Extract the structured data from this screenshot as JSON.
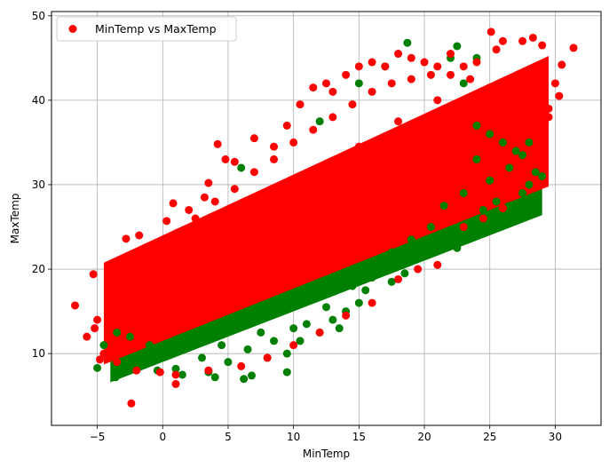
{
  "chart_data": {
    "type": "scatter",
    "title": "",
    "xlabel": "MinTemp",
    "ylabel": "MaxTemp",
    "xlim": [
      -8.5,
      33.5
    ],
    "ylim": [
      1.5,
      50.5
    ],
    "xticks": [
      -5,
      0,
      5,
      10,
      15,
      20,
      25,
      30
    ],
    "yticks": [
      10,
      20,
      30,
      40,
      50
    ],
    "grid": true,
    "legend_position": "top-left",
    "series": [
      {
        "name": "",
        "color": "#008000",
        "points": [
          [
            -5,
            8.3
          ],
          [
            -3.6,
            7.2
          ],
          [
            -2.5,
            12.0
          ],
          [
            -1.5,
            9.5
          ],
          [
            -0.4,
            8.0
          ],
          [
            1.0,
            8.2
          ],
          [
            1.5,
            7.5
          ],
          [
            3.5,
            7.8
          ],
          [
            4.0,
            7.2
          ],
          [
            5.0,
            9.0
          ],
          [
            6.2,
            7.0
          ],
          [
            6.8,
            7.4
          ],
          [
            8.0,
            9.5
          ],
          [
            9.5,
            7.8
          ],
          [
            9.5,
            10.0
          ],
          [
            10.5,
            11.5
          ],
          [
            12.0,
            12.5
          ],
          [
            13.0,
            14.0
          ],
          [
            14.0,
            15.0
          ],
          [
            15.0,
            16.0
          ],
          [
            15.5,
            17.5
          ],
          [
            16.5,
            19.5
          ],
          [
            17.5,
            18.5
          ],
          [
            18.5,
            19.5
          ],
          [
            19.0,
            21.0
          ],
          [
            20.0,
            22.0
          ],
          [
            21.0,
            23.5
          ],
          [
            22.5,
            22.5
          ],
          [
            23.5,
            25.5
          ],
          [
            24.5,
            27.0
          ],
          [
            25.5,
            28.0
          ],
          [
            26.5,
            27.5
          ],
          [
            27.5,
            29.0
          ],
          [
            28.0,
            30.0
          ],
          [
            28.5,
            31.5
          ],
          [
            29.0,
            31.0
          ],
          [
            27.5,
            33.5
          ],
          [
            26.0,
            35.0
          ],
          [
            25.0,
            36.0
          ],
          [
            24.0,
            37.0
          ],
          [
            23.0,
            42.0
          ],
          [
            22.5,
            46.4
          ],
          [
            24.0,
            45.0
          ],
          [
            18.7,
            46.8
          ],
          [
            17.0,
            44.0
          ],
          [
            6.0,
            32.0
          ],
          [
            12.0,
            37.5
          ],
          [
            15.0,
            42.0
          ],
          [
            22.0,
            45.0
          ],
          [
            4.5,
            11.0
          ],
          [
            2.0,
            12.0
          ],
          [
            7.5,
            12.5
          ],
          [
            11.0,
            13.5
          ],
          [
            13.5,
            13.0
          ],
          [
            16.0,
            19.0
          ],
          [
            20.5,
            25.0
          ],
          [
            21.5,
            27.5
          ],
          [
            23.0,
            29.0
          ],
          [
            24.0,
            33.0
          ],
          [
            26.5,
            32.0
          ],
          [
            27.0,
            34.0
          ],
          [
            28.0,
            35.0
          ],
          [
            25.0,
            30.5
          ],
          [
            19.0,
            23.5
          ],
          [
            17.5,
            22.0
          ],
          [
            14.5,
            18.0
          ],
          [
            12.5,
            15.5
          ],
          [
            10.0,
            13.0
          ],
          [
            8.5,
            11.5
          ],
          [
            6.5,
            10.5
          ],
          [
            3.0,
            9.5
          ],
          [
            0.5,
            10.0
          ],
          [
            -1.0,
            11.0
          ],
          [
            -3.5,
            12.5
          ],
          [
            -4.5,
            11.0
          ]
        ]
      },
      {
        "name": "MinTemp vs MaxTemp",
        "color": "#ff0000",
        "points": [
          [
            -6.7,
            15.7
          ],
          [
            -5.8,
            12.0
          ],
          [
            -5.3,
            19.4
          ],
          [
            -5.2,
            13.0
          ],
          [
            -5.0,
            14.0
          ],
          [
            -4.8,
            9.3
          ],
          [
            -4.0,
            16.5
          ],
          [
            -2.4,
            4.1
          ],
          [
            -2.8,
            23.6
          ],
          [
            -1.8,
            24.0
          ],
          [
            -1.2,
            21.5
          ],
          [
            0.3,
            25.7
          ],
          [
            1.0,
            6.4
          ],
          [
            0.8,
            27.8
          ],
          [
            2.0,
            27.0
          ],
          [
            3.2,
            28.5
          ],
          [
            3.5,
            30.2
          ],
          [
            4.2,
            34.8
          ],
          [
            4.8,
            33.0
          ],
          [
            5.5,
            32.7
          ],
          [
            7.0,
            35.5
          ],
          [
            8.5,
            34.5
          ],
          [
            9.5,
            37.0
          ],
          [
            10.5,
            39.5
          ],
          [
            11.5,
            41.5
          ],
          [
            12.5,
            42.0
          ],
          [
            13.0,
            41.0
          ],
          [
            14.0,
            43.0
          ],
          [
            15.0,
            44.0
          ],
          [
            16.0,
            44.5
          ],
          [
            17.0,
            44.0
          ],
          [
            18.0,
            45.5
          ],
          [
            19.0,
            45.0
          ],
          [
            20.0,
            44.5
          ],
          [
            21.0,
            44.0
          ],
          [
            22.0,
            45.5
          ],
          [
            23.0,
            44.0
          ],
          [
            24.0,
            44.5
          ],
          [
            25.1,
            48.1
          ],
          [
            25.5,
            46.0
          ],
          [
            26.0,
            47.0
          ],
          [
            27.5,
            47.0
          ],
          [
            28.3,
            47.4
          ],
          [
            29.0,
            46.5
          ],
          [
            30.5,
            44.2
          ],
          [
            31.4,
            46.2
          ],
          [
            30.0,
            42.0
          ],
          [
            30.3,
            40.5
          ],
          [
            29.5,
            38.0
          ],
          [
            29.0,
            35.0
          ],
          [
            28.5,
            33.5
          ],
          [
            27.5,
            31.0
          ],
          [
            26.0,
            27.2
          ],
          [
            24.5,
            26.0
          ],
          [
            23.0,
            25.0
          ],
          [
            21.0,
            20.5
          ],
          [
            19.5,
            20.0
          ],
          [
            18.0,
            18.8
          ],
          [
            16.0,
            16.0
          ],
          [
            14.0,
            14.5
          ],
          [
            12.0,
            12.5
          ],
          [
            10.0,
            11.0
          ],
          [
            8.0,
            9.5
          ],
          [
            6.0,
            8.5
          ],
          [
            3.5,
            8.0
          ],
          [
            1.0,
            7.5
          ],
          [
            -0.2,
            7.8
          ],
          [
            -2.0,
            8.0
          ],
          [
            -3.5,
            9.0
          ],
          [
            -4.5,
            10.0
          ],
          [
            -4.0,
            15.0
          ],
          [
            -3.0,
            17.5
          ],
          [
            -2.0,
            19.5
          ],
          [
            -1.0,
            21.0
          ],
          [
            0.0,
            22.5
          ],
          [
            1.5,
            24.0
          ],
          [
            2.5,
            26.0
          ],
          [
            4.0,
            28.0
          ],
          [
            5.5,
            29.5
          ],
          [
            7.0,
            31.5
          ],
          [
            8.5,
            33.0
          ],
          [
            10.0,
            35.0
          ],
          [
            11.5,
            36.5
          ],
          [
            13.0,
            38.0
          ],
          [
            14.5,
            39.5
          ],
          [
            16.0,
            41.0
          ],
          [
            17.5,
            42.0
          ],
          [
            19.0,
            42.5
          ],
          [
            20.5,
            43.0
          ],
          [
            22.0,
            43.0
          ],
          [
            23.5,
            42.5
          ],
          [
            25.0,
            41.5
          ],
          [
            26.5,
            40.5
          ],
          [
            28.0,
            39.5
          ],
          [
            29.5,
            39.0
          ],
          [
            2.0,
            15.0
          ],
          [
            5.0,
            18.0
          ],
          [
            8.0,
            22.0
          ],
          [
            11.0,
            26.0
          ],
          [
            14.0,
            30.0
          ],
          [
            17.0,
            33.5
          ],
          [
            20.0,
            36.0
          ],
          [
            23.0,
            38.0
          ],
          [
            26.0,
            37.0
          ],
          [
            3.0,
            20.0
          ],
          [
            6.0,
            24.0
          ],
          [
            9.0,
            27.5
          ],
          [
            12.0,
            31.0
          ],
          [
            15.0,
            34.5
          ],
          [
            18.0,
            37.5
          ],
          [
            21.0,
            40.0
          ],
          [
            24.0,
            40.0
          ],
          [
            0.0,
            14.0
          ],
          [
            4.0,
            16.5
          ],
          [
            7.0,
            19.5
          ],
          [
            10.0,
            22.5
          ],
          [
            13.0,
            25.5
          ],
          [
            16.0,
            28.5
          ],
          [
            19.0,
            31.5
          ],
          [
            22.0,
            34.0
          ]
        ]
      }
    ]
  }
}
